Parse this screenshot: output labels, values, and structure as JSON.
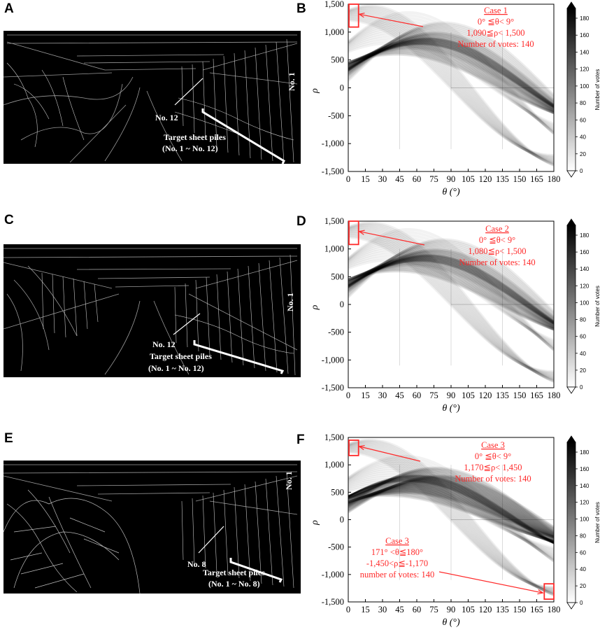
{
  "panel_labels": [
    "A",
    "B",
    "C",
    "D",
    "E",
    "F"
  ],
  "photos": [
    {
      "id": "A",
      "pile_no": "No. 12",
      "end_no": "No. 1",
      "title": "Target sheet piles",
      "range": "(No. 1 ~ No. 12)"
    },
    {
      "id": "C",
      "pile_no": "No. 12",
      "end_no": "No. 1",
      "title": "Target sheet piles",
      "range": "(No. 1 ~ No. 12)"
    },
    {
      "id": "E",
      "pile_no": "No. 8",
      "end_no": "No. 1",
      "title": "Target sheet piles",
      "range": "(No. 1 ~ No. 8)"
    }
  ],
  "chart_data": [
    {
      "id": "B",
      "type": "heatmap",
      "title": "",
      "xlabel": "θ (°)",
      "ylabel": "ρ",
      "xlim": [
        0,
        180
      ],
      "ylim": [
        -1500,
        1500
      ],
      "xticks": [
        "0",
        "15",
        "30",
        "45",
        "60",
        "75",
        "90",
        "105",
        "120",
        "135",
        "150",
        "165",
        "180"
      ],
      "yticks": [
        "1,500",
        "1,000",
        "500",
        "0",
        "-500",
        "-1,000",
        "-1,500"
      ],
      "colorbar": {
        "label": "Number of votes",
        "ticks": [
          "180",
          "160",
          "140",
          "120",
          "100",
          "80",
          "60",
          "40",
          "20",
          "0"
        ],
        "range": [
          0,
          180
        ]
      },
      "annotations": [
        {
          "title": "Case 1",
          "lines": [
            "0°  ≦θ< 9°",
            "1,090≦ρ< 1,500",
            "Number of votes: 140"
          ],
          "box": {
            "theta": [
              0,
              9
            ],
            "rho": [
              1090,
              1500
            ]
          }
        }
      ],
      "bands": [
        {
          "theta": [
            0,
            180
          ],
          "rho_start": [
            1300,
            -1400
          ],
          "peak_at": 0,
          "intensity": 0.55
        },
        {
          "theta": [
            0,
            180
          ],
          "rho_start": [
            600,
            -300
          ],
          "intensity": 0.8
        },
        {
          "theta": [
            0,
            180
          ],
          "rho_start": [
            400,
            -900
          ],
          "intensity": 0.7
        }
      ]
    },
    {
      "id": "D",
      "type": "heatmap",
      "title": "",
      "xlabel": "θ (°)",
      "ylabel": "ρ",
      "xlim": [
        0,
        180
      ],
      "ylim": [
        -1500,
        1500
      ],
      "xticks": [
        "0",
        "15",
        "30",
        "45",
        "60",
        "75",
        "90",
        "105",
        "120",
        "135",
        "150",
        "165",
        "180"
      ],
      "yticks": [
        "1,500",
        "1,000",
        "500",
        "0",
        "-500",
        "-1,000",
        "-1,500"
      ],
      "colorbar": {
        "label": "Number of votes",
        "ticks": [
          "180",
          "160",
          "140",
          "120",
          "100",
          "80",
          "60",
          "40",
          "20",
          "0"
        ],
        "range": [
          0,
          180
        ]
      },
      "annotations": [
        {
          "title": "Case 2",
          "lines": [
            "0°  ≦θ< 9°",
            "1,080≦ρ< 1,500",
            "Number of votes: 140"
          ],
          "box": {
            "theta": [
              0,
              9
            ],
            "rho": [
              1080,
              1500
            ]
          }
        }
      ]
    },
    {
      "id": "F",
      "type": "heatmap",
      "title": "",
      "xlabel": "θ (°)",
      "ylabel": "ρ",
      "xlim": [
        0,
        180
      ],
      "ylim": [
        -1500,
        1500
      ],
      "xticks": [
        "0",
        "15",
        "30",
        "45",
        "60",
        "75",
        "90",
        "105",
        "120",
        "135",
        "150",
        "165",
        "180"
      ],
      "yticks": [
        "1,500",
        "1,000",
        "500",
        "0",
        "-500",
        "-1,000",
        "-1,500"
      ],
      "colorbar": {
        "label": "Number of votes",
        "ticks": [
          "180",
          "160",
          "140",
          "120",
          "100",
          "80",
          "60",
          "40",
          "20",
          "0"
        ],
        "range": [
          0,
          180
        ]
      },
      "annotations": [
        {
          "title": "Case 3",
          "lines": [
            "0°  ≦θ< 9°",
            "1,170≦ρ< 1,450",
            "Number of votes: 140"
          ],
          "box": {
            "theta": [
              0,
              9
            ],
            "rho": [
              1170,
              1450
            ]
          }
        },
        {
          "title": "Case 3",
          "lines": [
            "171°  <θ≦180°",
            "-1,450<ρ≦-1,170",
            "number of votes: 140"
          ],
          "box": {
            "theta": [
              171,
              180
            ],
            "rho": [
              -1450,
              -1170
            ]
          }
        }
      ]
    }
  ]
}
